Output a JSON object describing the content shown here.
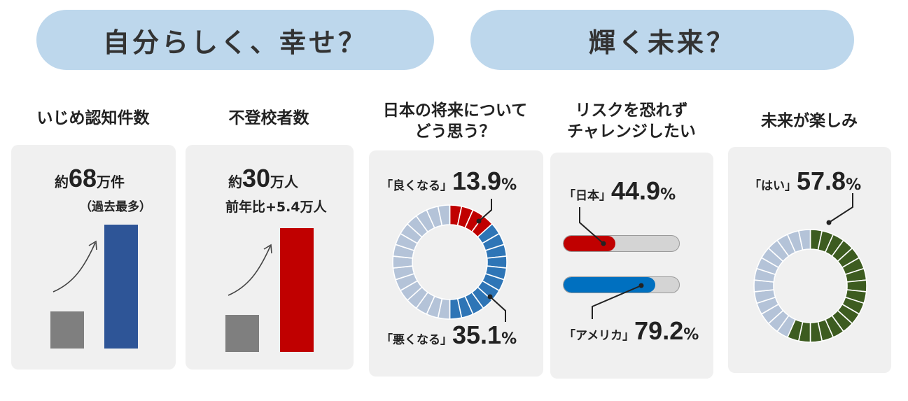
{
  "header": {
    "left_label": "自分らしく、幸せ？",
    "right_label": "輝く未来？"
  },
  "colors": {
    "pill": "#bdd7ec",
    "card": "#f0f0f0",
    "gray_bar": "#7f7f7f",
    "blue_bar": "#2e5597",
    "red_bar": "#c00000",
    "ring_bg": "#b4c3d8",
    "ring_red": "#c00000",
    "ring_blue": "#2e75b6",
    "ring_green": "#3d5c20",
    "progress_japan": "#c00000",
    "progress_usa": "#0070c0"
  },
  "panels": {
    "bullying": {
      "title": "いじめ認知件数",
      "prefix": "約",
      "number": "68",
      "unit": "万件",
      "note": "（過去最多）"
    },
    "truancy": {
      "title": "不登校者数",
      "prefix": "約",
      "number": "30",
      "unit": "万人",
      "note": "前年比+5.4万人"
    },
    "future": {
      "title_line1": "日本の将来について",
      "title_line2": "どう思う？",
      "good_label": "「良くなる」",
      "good_value": "13.9",
      "bad_label": "「悪くなる」",
      "bad_value": "35.1",
      "unit": "%"
    },
    "risk": {
      "title_line1": "リスクを恐れず",
      "title_line2": "チャレンジしたい",
      "japan_label": "「日本」",
      "japan_value": "44.9",
      "usa_label": "「アメリカ」",
      "usa_value": "79.2",
      "unit": "%"
    },
    "fun": {
      "title": "未来が楽しみ",
      "yes_label": "「はい」",
      "yes_value": "57.8",
      "unit": "%"
    }
  },
  "chart_data": [
    {
      "type": "bar",
      "categories": [
        "",
        ""
      ],
      "values": [
        0.3,
        1.0
      ],
      "colors": [
        "#7f7f7f",
        "#2e5597"
      ]
    },
    {
      "type": "bar",
      "categories": [
        "",
        ""
      ],
      "values": [
        0.3,
        1.0
      ],
      "colors": [
        "#7f7f7f",
        "#c00000"
      ]
    },
    {
      "type": "pie",
      "segments": 30,
      "series": [
        {
          "name": "「良くなる」",
          "value": 13.9,
          "color": "#c00000"
        },
        {
          "name": "「悪くなる」",
          "value": 35.1,
          "color": "#2e75b6"
        }
      ]
    },
    {
      "type": "bar",
      "orientation": "horizontal",
      "categories": [
        "「日本」",
        "「アメリカ」"
      ],
      "values": [
        44.9,
        79.2
      ],
      "xlim": [
        0,
        100
      ]
    },
    {
      "type": "pie",
      "segments": 30,
      "series": [
        {
          "name": "「はい」",
          "value": 57.8,
          "color": "#3d5c20"
        }
      ]
    }
  ]
}
